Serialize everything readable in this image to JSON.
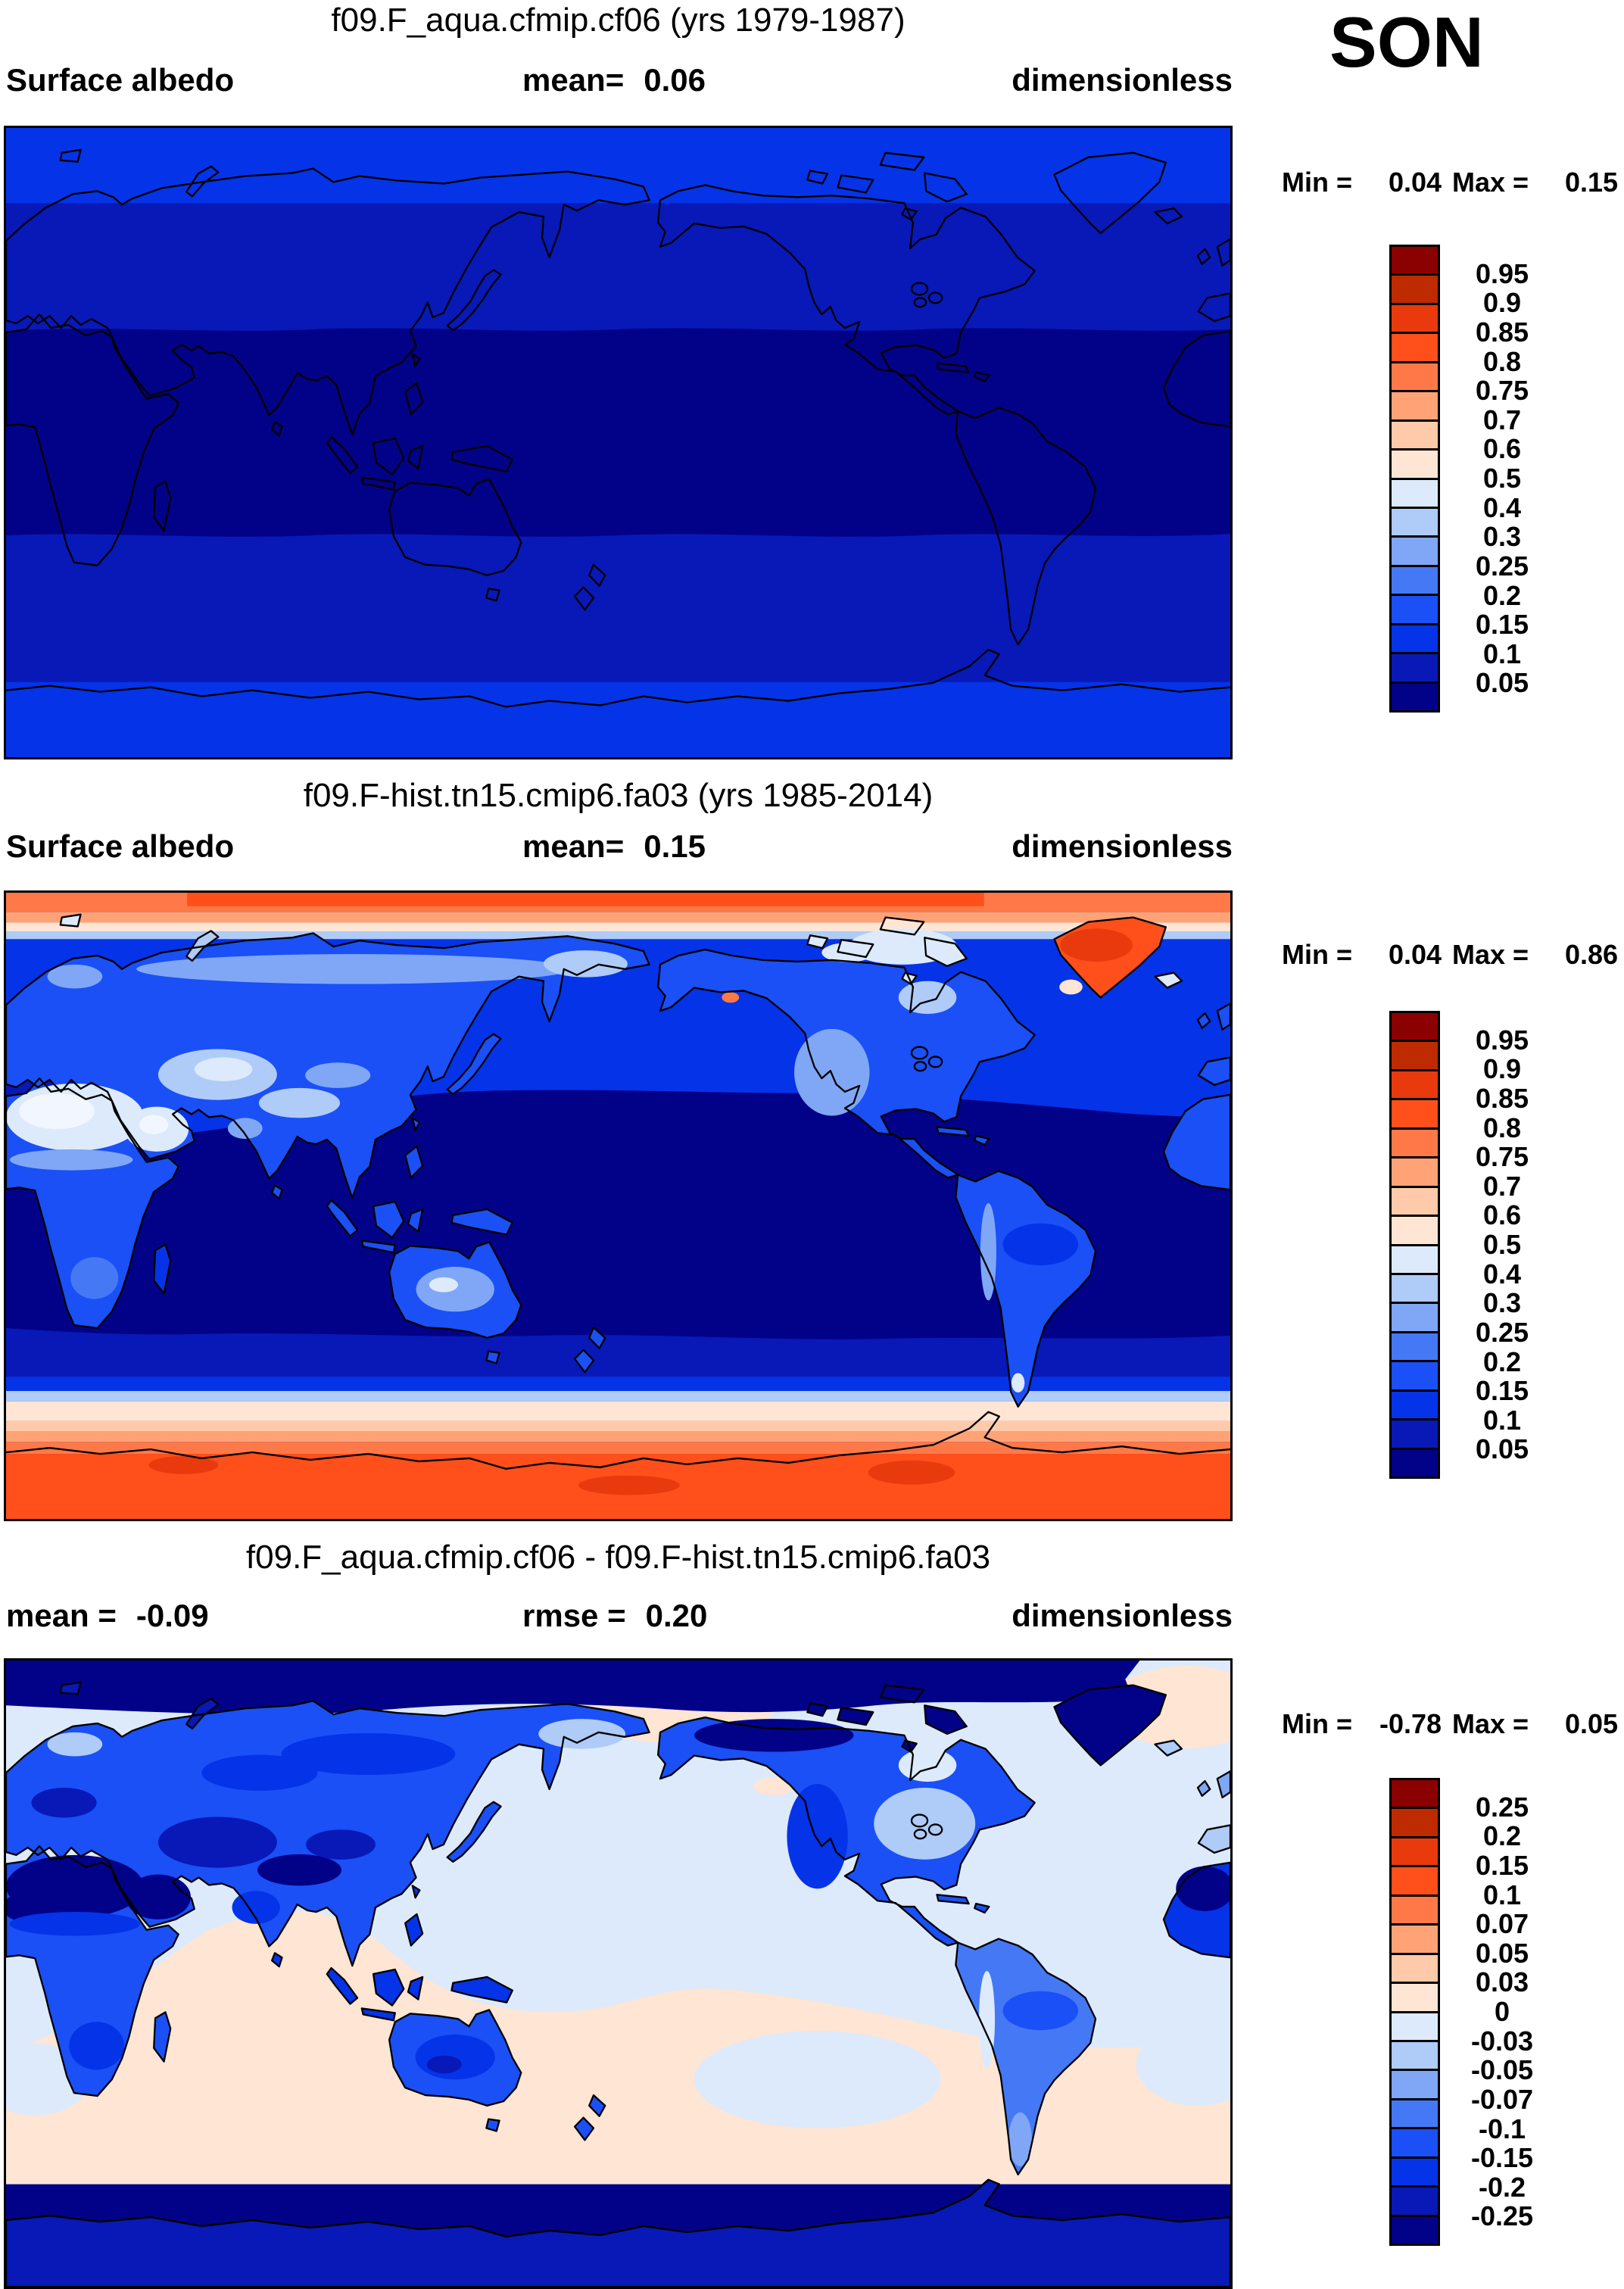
{
  "season": "SON",
  "palette": {
    "c0": "#8B0000",
    "c1": "#BE2B00",
    "c2": "#E83A0D",
    "c3": "#FF4F1A",
    "c4": "#FF7948",
    "c5": "#FFA377",
    "c6": "#FFCAAA",
    "c7": "#FFE5D3",
    "c8": "#DCEAFB",
    "c9": "#AFCBF8",
    "c10": "#7FA7F6",
    "c11": "#4478F5",
    "c12": "#1A50F5",
    "c13": "#0533E8",
    "c14": "#0819B8",
    "c15": "#020288",
    "desert": "#F2F7FF"
  },
  "colorbar_colors": [
    "c0",
    "c1",
    "c2",
    "c3",
    "c4",
    "c5",
    "c6",
    "c7",
    "c8",
    "c9",
    "c10",
    "c11",
    "c12",
    "c13",
    "c14",
    "c15"
  ],
  "panels": [
    {
      "title": "f09.F_aqua.cfmip.cf06 (yrs 1979-1987)",
      "left_label": "Surface albedo",
      "center_label": "mean=",
      "center_value": "0.06",
      "units": "dimensionless",
      "min_label": "Min =",
      "min_value": "0.04",
      "max_label": "Max =",
      "max_value": "0.15",
      "colorbar_labels": [
        "0.95",
        "0.9",
        "0.85",
        "0.8",
        "0.75",
        "0.7",
        "0.6",
        "0.5",
        "0.4",
        "0.3",
        "0.25",
        "0.2",
        "0.15",
        "0.1",
        "0.05"
      ]
    },
    {
      "title": "f09.F-hist.tn15.cmip6.fa03 (yrs 1985-2014)",
      "left_label": "Surface albedo",
      "center_label": "mean=",
      "center_value": "0.15",
      "units": "dimensionless",
      "min_label": "Min =",
      "min_value": "0.04",
      "max_label": "Max =",
      "max_value": "0.86",
      "colorbar_labels": [
        "0.95",
        "0.9",
        "0.85",
        "0.8",
        "0.75",
        "0.7",
        "0.6",
        "0.5",
        "0.4",
        "0.3",
        "0.25",
        "0.2",
        "0.15",
        "0.1",
        "0.05"
      ]
    },
    {
      "title": "f09.F_aqua.cfmip.cf06 - f09.F-hist.tn15.cmip6.fa03",
      "left_label": "mean =",
      "left_value": "-0.09",
      "center_label": "rmse =",
      "center_value": "0.20",
      "units": "dimensionless",
      "min_label": "Min =",
      "min_value": "-0.78",
      "max_label": "Max =",
      "max_value": "0.05",
      "colorbar_labels": [
        "0.25",
        "0.2",
        "0.15",
        "0.1",
        "0.07",
        "0.05",
        "0.03",
        "0",
        "-0.03",
        "-0.05",
        "-0.07",
        "-0.1",
        "-0.15",
        "-0.2",
        "-0.25"
      ]
    }
  ],
  "chart_data": {
    "type": "heatmap",
    "subtype": "global lat-lon filled-contour maps (3 stacked panels)",
    "season": "SON",
    "variable": "Surface albedo",
    "units": "dimensionless",
    "legend_position": "right",
    "contour_levels_albedo": [
      0.05,
      0.1,
      0.15,
      0.2,
      0.25,
      0.3,
      0.4,
      0.5,
      0.6,
      0.7,
      0.75,
      0.8,
      0.85,
      0.9,
      0.95
    ],
    "contour_levels_difference": [
      -0.25,
      -0.2,
      -0.15,
      -0.1,
      -0.07,
      -0.05,
      -0.03,
      0,
      0.03,
      0.05,
      0.07,
      0.1,
      0.15,
      0.2,
      0.25
    ],
    "panels": [
      {
        "name": "f09.F_aqua.cfmip.cf06 (yrs 1979-1987)",
        "statistic": "mean",
        "mean": 0.06,
        "min": 0.04,
        "max": 0.15,
        "description": "aquaplanet: zonally banded albedo, <0.05 in tropics rising to 0.1-0.15 poleward of ~55 deg"
      },
      {
        "name": "f09.F-hist.tn15.cmip6.fa03 (yrs 1985-2014)",
        "statistic": "mean",
        "mean": 0.15,
        "min": 0.04,
        "max": 0.86,
        "description": "realistic: ocean 0.05-0.15, land 0.15-0.3, deserts 0.4-0.6, Greenland/Arctic and Antarctica 0.75-0.9"
      },
      {
        "name": "f09.F_aqua.cfmip.cf06 - f09.F-hist.tn15.cmip6.fa03",
        "statistic": "mean and rmse",
        "mean": -0.09,
        "rmse": 0.2,
        "min": -0.78,
        "max": 0.05,
        "description": "difference: near 0 to +0.03 over tropical/southern oceans, -0.03 to -0.1 over most land, below -0.25 over deserts, poles and ice sheets"
      }
    ]
  }
}
